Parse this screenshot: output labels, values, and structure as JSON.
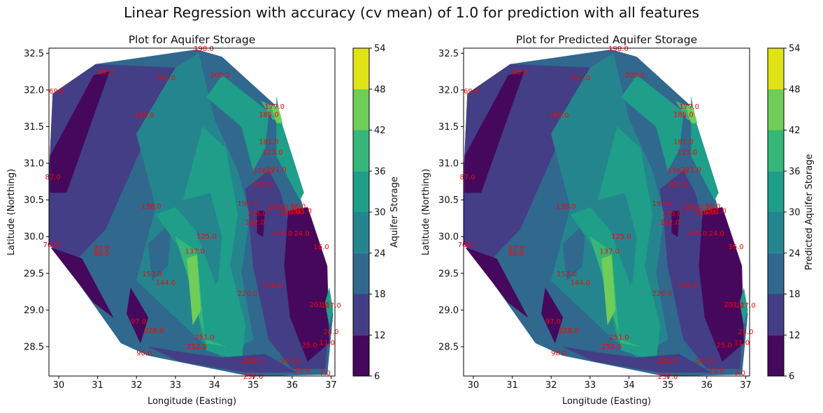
{
  "suptitle": "Linear Regression with accuracy (cv mean) of 1.0 for prediction with all features",
  "colors": {
    "levels": [
      "#46085c",
      "#433e85",
      "#31688e",
      "#25858e",
      "#1f9e89",
      "#35b779",
      "#6ece58",
      "#b5de2b",
      "#dfe318"
    ],
    "point_label": "#ff0000"
  },
  "chart_data": [
    {
      "type": "contour",
      "title": "Plot for Aquifer Storage",
      "xlabel": "Longitude (Easting)",
      "ylabel": "Latitude (Northing)",
      "xlim": [
        29.75,
        37.1
      ],
      "ylim": [
        28.1,
        32.57
      ],
      "xticks": [
        "30",
        "31",
        "32",
        "33",
        "34",
        "35",
        "36",
        "37"
      ],
      "yticks": [
        "28.5",
        "29.0",
        "29.5",
        "30.0",
        "30.5",
        "31.0",
        "31.5",
        "32.0",
        "32.5"
      ],
      "colorbar": {
        "label": "Aquifer Storage",
        "ticks": [
          "6",
          "12",
          "18",
          "24",
          "30",
          "36",
          "42",
          "48",
          "54"
        ],
        "range": [
          6,
          54
        ]
      },
      "point_labels": [
        {
          "text": "198.0",
          "x": 33.73,
          "y": 32.56
        },
        {
          "text": "68.0",
          "x": 31.2,
          "y": 32.24
        },
        {
          "text": "163.0",
          "x": 32.75,
          "y": 32.16
        },
        {
          "text": "200.0",
          "x": 34.15,
          "y": 32.2
        },
        {
          "text": "69.0",
          "x": 29.95,
          "y": 31.98
        },
        {
          "text": "177.0",
          "x": 35.55,
          "y": 31.77
        },
        {
          "text": "195.0",
          "x": 32.2,
          "y": 31.65
        },
        {
          "text": "185.0",
          "x": 35.4,
          "y": 31.66
        },
        {
          "text": "181.0",
          "x": 35.4,
          "y": 31.29
        },
        {
          "text": "123.0",
          "x": 35.5,
          "y": 31.15
        },
        {
          "text": "87.0",
          "x": 29.85,
          "y": 30.81
        },
        {
          "text": "178.0",
          "x": 35.25,
          "y": 30.89
        },
        {
          "text": "221.0",
          "x": 35.6,
          "y": 30.91
        },
        {
          "text": "201.0",
          "x": 35.25,
          "y": 30.71
        },
        {
          "text": "199.0",
          "x": 34.85,
          "y": 30.45
        },
        {
          "text": "138.0",
          "x": 32.38,
          "y": 30.41
        },
        {
          "text": "205.0",
          "x": 35.65,
          "y": 30.4
        },
        {
          "text": "86.0",
          "x": 36.15,
          "y": 30.41
        },
        {
          "text": "221.0",
          "x": 36.25,
          "y": 30.35
        },
        {
          "text": "216.0",
          "x": 35.95,
          "y": 30.33
        },
        {
          "text": "207.0",
          "x": 36.05,
          "y": 30.33
        },
        {
          "text": "175.0",
          "x": 35.1,
          "y": 30.31
        },
        {
          "text": "182.0",
          "x": 35.05,
          "y": 30.19
        },
        {
          "text": "209.0",
          "x": 35.75,
          "y": 30.04
        },
        {
          "text": "24.0",
          "x": 36.25,
          "y": 30.04
        },
        {
          "text": "125.0",
          "x": 33.8,
          "y": 30.0
        },
        {
          "text": "76.0",
          "x": 29.8,
          "y": 29.89
        },
        {
          "text": "87.0",
          "x": 31.1,
          "y": 29.84
        },
        {
          "text": "80.0",
          "x": 31.1,
          "y": 29.77
        },
        {
          "text": "16.0",
          "x": 36.75,
          "y": 29.86
        },
        {
          "text": "137.0",
          "x": 33.5,
          "y": 29.8
        },
        {
          "text": "153.0",
          "x": 32.4,
          "y": 29.49
        },
        {
          "text": "144.0",
          "x": 32.75,
          "y": 29.37
        },
        {
          "text": "116.0",
          "x": 35.5,
          "y": 29.33
        },
        {
          "text": "220.0",
          "x": 34.85,
          "y": 29.22
        },
        {
          "text": "201.0",
          "x": 36.7,
          "y": 29.07
        },
        {
          "text": "117.0",
          "x": 37.0,
          "y": 29.06
        },
        {
          "text": "97.0",
          "x": 32.05,
          "y": 28.84
        },
        {
          "text": "228.0",
          "x": 32.45,
          "y": 28.72
        },
        {
          "text": "251.0",
          "x": 33.75,
          "y": 28.63
        },
        {
          "text": "28.0",
          "x": 37.0,
          "y": 28.7
        },
        {
          "text": "252.0",
          "x": 33.55,
          "y": 28.5
        },
        {
          "text": "11.0",
          "x": 36.9,
          "y": 28.55
        },
        {
          "text": "25.0",
          "x": 36.45,
          "y": 28.52
        },
        {
          "text": "90.0",
          "x": 32.2,
          "y": 28.41
        },
        {
          "text": "233.0",
          "x": 35.0,
          "y": 28.31
        },
        {
          "text": "247.0",
          "x": 35.95,
          "y": 28.3
        },
        {
          "text": "10.0",
          "x": 36.25,
          "y": 28.17
        },
        {
          "text": "7.0",
          "x": 36.85,
          "y": 28.14
        },
        {
          "text": "237.0",
          "x": 35.0,
          "y": 28.09
        }
      ]
    },
    {
      "type": "contour",
      "title": "Plot for Predicted Aquifer Storage",
      "xlabel": "Longitude (Easting)",
      "ylabel": "Latitude (Northing)",
      "xlim": [
        29.75,
        37.1
      ],
      "ylim": [
        28.1,
        32.57
      ],
      "xticks": [
        "30",
        "31",
        "32",
        "33",
        "34",
        "35",
        "36",
        "37"
      ],
      "yticks": [
        "28.5",
        "29.0",
        "29.5",
        "30.0",
        "30.5",
        "31.0",
        "31.5",
        "32.0",
        "32.5"
      ],
      "colorbar": {
        "label": "Predicted Aquifer Storage",
        "ticks": [
          "6",
          "12",
          "18",
          "24",
          "30",
          "36",
          "42",
          "48",
          "54"
        ],
        "range": [
          6,
          54
        ]
      },
      "point_labels": [
        {
          "text": "198.0",
          "x": 33.73,
          "y": 32.56
        },
        {
          "text": "68.0",
          "x": 31.2,
          "y": 32.24
        },
        {
          "text": "163.0",
          "x": 32.75,
          "y": 32.16
        },
        {
          "text": "200.0",
          "x": 34.15,
          "y": 32.2
        },
        {
          "text": "69.0",
          "x": 29.95,
          "y": 31.98
        },
        {
          "text": "177.0",
          "x": 35.55,
          "y": 31.77
        },
        {
          "text": "195.0",
          "x": 32.2,
          "y": 31.65
        },
        {
          "text": "185.0",
          "x": 35.4,
          "y": 31.66
        },
        {
          "text": "181.0",
          "x": 35.4,
          "y": 31.29
        },
        {
          "text": "123.0",
          "x": 35.5,
          "y": 31.15
        },
        {
          "text": "87.0",
          "x": 29.85,
          "y": 30.81
        },
        {
          "text": "178.0",
          "x": 35.25,
          "y": 30.89
        },
        {
          "text": "221.0",
          "x": 35.6,
          "y": 30.91
        },
        {
          "text": "201.0",
          "x": 35.25,
          "y": 30.71
        },
        {
          "text": "199.0",
          "x": 34.85,
          "y": 30.45
        },
        {
          "text": "138.0",
          "x": 32.38,
          "y": 30.41
        },
        {
          "text": "205.0",
          "x": 35.65,
          "y": 30.4
        },
        {
          "text": "86.0",
          "x": 36.15,
          "y": 30.41
        },
        {
          "text": "221.0",
          "x": 36.25,
          "y": 30.35
        },
        {
          "text": "216.0",
          "x": 35.95,
          "y": 30.33
        },
        {
          "text": "207.0",
          "x": 36.05,
          "y": 30.33
        },
        {
          "text": "175.0",
          "x": 35.1,
          "y": 30.31
        },
        {
          "text": "182.0",
          "x": 35.05,
          "y": 30.19
        },
        {
          "text": "209.0",
          "x": 35.75,
          "y": 30.04
        },
        {
          "text": "24.0",
          "x": 36.25,
          "y": 30.04
        },
        {
          "text": "125.0",
          "x": 33.8,
          "y": 30.0
        },
        {
          "text": "76.0",
          "x": 29.8,
          "y": 29.89
        },
        {
          "text": "87.0",
          "x": 31.1,
          "y": 29.84
        },
        {
          "text": "80.0",
          "x": 31.1,
          "y": 29.77
        },
        {
          "text": "16.0",
          "x": 36.75,
          "y": 29.86
        },
        {
          "text": "137.0",
          "x": 33.5,
          "y": 29.8
        },
        {
          "text": "153.0",
          "x": 32.4,
          "y": 29.49
        },
        {
          "text": "144.0",
          "x": 32.75,
          "y": 29.37
        },
        {
          "text": "116.0",
          "x": 35.5,
          "y": 29.33
        },
        {
          "text": "220.0",
          "x": 34.85,
          "y": 29.22
        },
        {
          "text": "201.0",
          "x": 36.7,
          "y": 29.07
        },
        {
          "text": "117.0",
          "x": 37.0,
          "y": 29.06
        },
        {
          "text": "97.0",
          "x": 32.05,
          "y": 28.84
        },
        {
          "text": "228.0",
          "x": 32.45,
          "y": 28.72
        },
        {
          "text": "251.0",
          "x": 33.75,
          "y": 28.63
        },
        {
          "text": "28.0",
          "x": 37.0,
          "y": 28.7
        },
        {
          "text": "252.0",
          "x": 33.55,
          "y": 28.5
        },
        {
          "text": "11.0",
          "x": 36.9,
          "y": 28.55
        },
        {
          "text": "25.0",
          "x": 36.45,
          "y": 28.52
        },
        {
          "text": "90.0",
          "x": 32.2,
          "y": 28.41
        },
        {
          "text": "233.0",
          "x": 35.0,
          "y": 28.31
        },
        {
          "text": "247.0",
          "x": 35.95,
          "y": 28.3
        },
        {
          "text": "10.0",
          "x": 36.25,
          "y": 28.17
        },
        {
          "text": "7.0",
          "x": 36.85,
          "y": 28.14
        },
        {
          "text": "237.0",
          "x": 35.0,
          "y": 28.09
        }
      ]
    }
  ]
}
